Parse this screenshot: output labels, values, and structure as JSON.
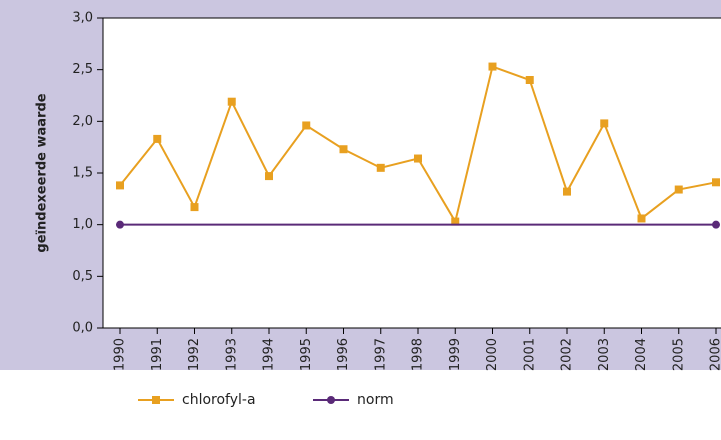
{
  "chart_data": {
    "type": "line",
    "y_label": "geïndexeerde waarde",
    "categories": [
      "1990",
      "1991",
      "1992",
      "1993",
      "1994",
      "1995",
      "1996",
      "1997",
      "1998",
      "1999",
      "2000",
      "2001",
      "2002",
      "2003",
      "2004",
      "2005",
      "2006"
    ],
    "series": [
      {
        "name": "chlorofyl-a",
        "color": "#e8a020",
        "marker": "square",
        "values": [
          1.38,
          1.83,
          1.17,
          2.19,
          1.47,
          1.96,
          1.73,
          1.55,
          1.64,
          1.03,
          2.53,
          2.4,
          1.32,
          1.98,
          1.06,
          1.34,
          1.41
        ]
      },
      {
        "name": "norm",
        "color": "#5a2a78",
        "marker": "circle",
        "values": [
          1,
          1,
          1,
          1,
          1,
          1,
          1,
          1,
          1,
          1,
          1,
          1,
          1,
          1,
          1,
          1,
          1
        ]
      }
    ],
    "ylim": [
      0,
      3
    ],
    "yticks": [
      {
        "value": 0,
        "label": "0,0"
      },
      {
        "value": 0.5,
        "label": "0,5"
      },
      {
        "value": 1,
        "label": "1,0"
      },
      {
        "value": 1.5,
        "label": "1,5"
      },
      {
        "value": 2,
        "label": "2,0"
      },
      {
        "value": 2.5,
        "label": "2,5"
      },
      {
        "value": 3,
        "label": "3,0"
      }
    ],
    "grid": false
  }
}
